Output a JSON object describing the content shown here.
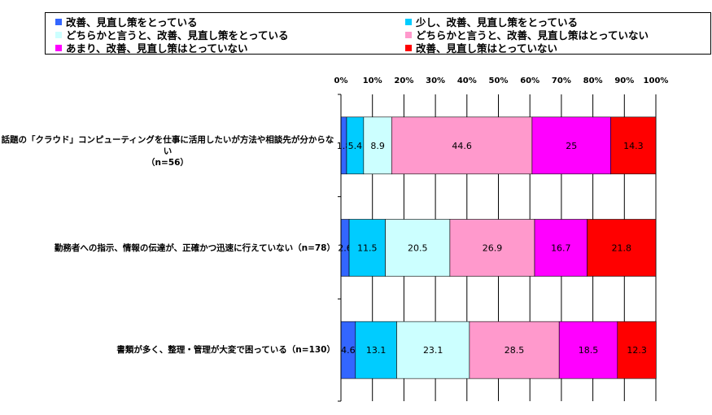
{
  "chart_data": {
    "type": "bar",
    "orientation": "horizontal",
    "stacked": "percent",
    "categories": [
      "話題の「クラウド」コンピューティングを仕事に活用したいが方法や相談先が分からない（n=56）",
      "勤務者への指示、情報の伝達が、正確かつ迅速に行えていない（n=78）",
      "書類が多く、整理・管理が大変で困っている（n=130）"
    ],
    "category_lines": [
      [
        "話題の「クラウド」コンピューティングを仕事に活用したいが方法や相談先が分からない",
        "（n=56）"
      ],
      [
        "勤務者への指示、情報の伝達が、正確かつ迅速に行えていない（n=78）"
      ],
      [
        "書類が多く、整理・管理が大変で困っている（n=130）"
      ]
    ],
    "series": [
      {
        "name": "改善、見直し策をとっている",
        "color": "#3366ff",
        "values": [
          1.8,
          2.6,
          4.6
        ]
      },
      {
        "name": "少し、改善、見直し策をとっている",
        "color": "#00ccff",
        "values": [
          5.4,
          11.5,
          13.1
        ]
      },
      {
        "name": "どちらかと言うと、改善、見直し策をとっている",
        "color": "#ccffff",
        "values": [
          8.9,
          20.5,
          23.1
        ]
      },
      {
        "name": "どちらかと言うと、改善、見直し策はとっていない",
        "color": "#ff99cc",
        "values": [
          44.6,
          26.9,
          28.5
        ]
      },
      {
        "name": "あまり、改善、見直し策はとっていない",
        "color": "#ff00ff",
        "values": [
          25,
          16.7,
          18.5
        ]
      },
      {
        "name": "改善、見直し策はとっていない",
        "color": "#ff0000",
        "values": [
          14.3,
          21.8,
          12.3
        ]
      }
    ],
    "x_ticks": [
      "0%",
      "10%",
      "20%",
      "30%",
      "40%",
      "50%",
      "60%",
      "70%",
      "80%",
      "90%",
      "100%"
    ],
    "xlim": [
      0,
      100
    ],
    "grid": true,
    "legend_position": "top"
  }
}
